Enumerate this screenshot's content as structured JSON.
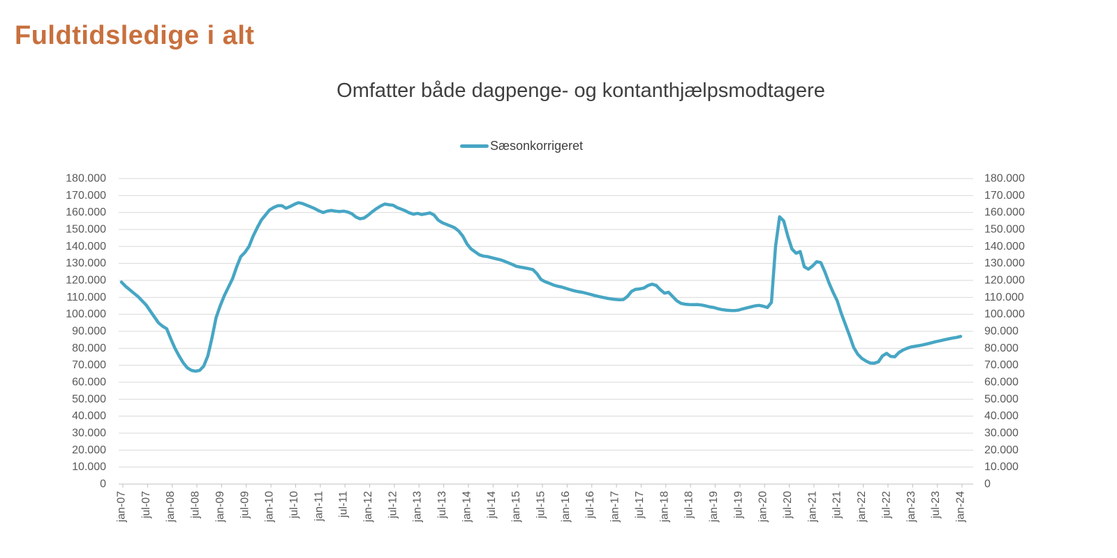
{
  "page": {
    "title": "Fuldtidsledige i alt",
    "title_color": "#C8703E",
    "background": "#ffffff"
  },
  "chart_data": {
    "type": "line",
    "title": "Fuldtidsledige i alt",
    "subtitle": "Omfatter både dagpenge- og kontanthjælpsmodtagere",
    "legend_position": "top-center",
    "legend": [
      {
        "name": "Sæsonkorrigeret",
        "color": "#47A6C4"
      }
    ],
    "grid": "horizontal",
    "grid_color": "#D9D9D9",
    "axis_color": "#BFBFBF",
    "tick_label_color": "#595959",
    "y_axis": {
      "min": 0,
      "max": 180000,
      "step": 10000,
      "sides": "left and right",
      "tick_format": "thousands with dot separator (e.g. 180.000)"
    },
    "x_axis": {
      "start": "jan-07",
      "end": "jan-24",
      "frequency": "monthly",
      "tick_interval": "6 months",
      "label_rotation": -90
    },
    "x_tick_labels": [
      "jan-07",
      "jul-07",
      "jan-08",
      "jul-08",
      "jan-09",
      "jul-09",
      "jan-10",
      "jul-10",
      "jan-11",
      "jul-11",
      "jan-12",
      "jul-12",
      "jan-13",
      "jul-13",
      "jan-14",
      "jul-14",
      "jan-15",
      "jul-15",
      "jan-16",
      "jul-16",
      "jan-17",
      "jul-17",
      "jan-18",
      "jul-18",
      "jan-19",
      "jul-19",
      "jan-20",
      "jul-20",
      "jan-21",
      "jul-21",
      "jan-22",
      "jul-22",
      "jan-23",
      "jul-23",
      "jan-24"
    ],
    "series": [
      {
        "name": "Sæsonkorrigeret",
        "color": "#47A6C4",
        "first_month": "jan-07",
        "values": [
          119000,
          116500,
          114500,
          112500,
          110500,
          108000,
          105500,
          102000,
          98500,
          95000,
          93000,
          91500,
          85500,
          80000,
          75500,
          71500,
          68500,
          67000,
          66500,
          67000,
          69500,
          75500,
          86000,
          98000,
          105000,
          111000,
          116000,
          121000,
          128000,
          134000,
          136500,
          140000,
          146000,
          151000,
          155500,
          158500,
          161500,
          163000,
          164000,
          164000,
          162500,
          163500,
          164800,
          165800,
          165300,
          164300,
          163300,
          162300,
          161000,
          160000,
          160800,
          161200,
          160800,
          160500,
          160800,
          160300,
          159300,
          157300,
          156300,
          156800,
          158500,
          160500,
          162300,
          163800,
          165000,
          164600,
          164300,
          162900,
          162000,
          161000,
          159800,
          159000,
          159500,
          158800,
          159300,
          159800,
          158500,
          155500,
          154000,
          153000,
          152000,
          151000,
          149000,
          146000,
          141500,
          138500,
          136800,
          135100,
          134300,
          134000,
          133400,
          132800,
          132200,
          131400,
          130400,
          129400,
          128300,
          127800,
          127400,
          126900,
          126400,
          124000,
          120500,
          119200,
          118300,
          117300,
          116600,
          116100,
          115300,
          114600,
          113900,
          113400,
          113000,
          112400,
          111800,
          111100,
          110500,
          110000,
          109500,
          109100,
          108800,
          108600,
          108700,
          110500,
          113500,
          114800,
          115000,
          115500,
          117000,
          117800,
          117000,
          114500,
          112500,
          113000,
          110500,
          108000,
          106500,
          106000,
          105800,
          105700,
          105800,
          105500,
          105000,
          104400,
          104000,
          103300,
          102800,
          102500,
          102300,
          102200,
          102500,
          103200,
          103800,
          104400,
          105000,
          105300,
          104800,
          104000,
          107000,
          140000,
          157500,
          155000,
          146000,
          138500,
          136000,
          137000,
          128000,
          126600,
          128500,
          131000,
          130500,
          125000,
          118500,
          113000,
          108000,
          100500,
          94000,
          87500,
          80500,
          76500,
          74000,
          72500,
          71300,
          71200,
          72000,
          75500,
          77000,
          75200,
          75000,
          77500,
          79000,
          80000,
          80800,
          81200,
          81600,
          82100,
          82700,
          83300,
          83900,
          84400,
          85000,
          85500,
          86000,
          86400,
          87000
        ]
      }
    ]
  }
}
